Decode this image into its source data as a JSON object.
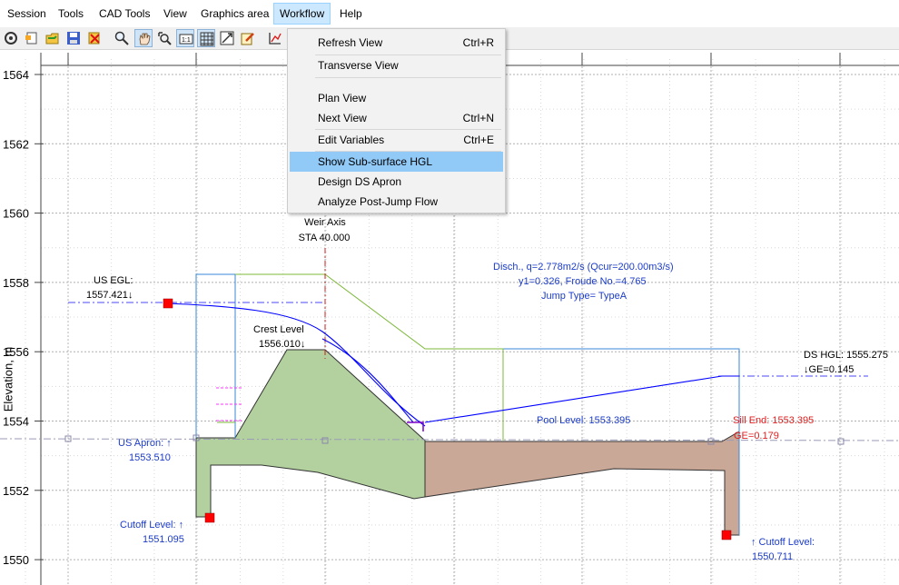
{
  "menubar": {
    "items": [
      "Session",
      "Tools",
      "CAD Tools",
      "View",
      "Graphics area",
      "Workflow",
      "Help"
    ],
    "active": "Workflow"
  },
  "toolbar": {
    "icons": [
      "settings-icon",
      "new-file-icon",
      "open-icon",
      "save-icon",
      "close-file-icon",
      "zoom-icon",
      "pan-hand-icon",
      "zoom-window-icon",
      "one-to-one-icon",
      "grid-icon",
      "fit-icon",
      "edit-icon",
      "chart-icon"
    ]
  },
  "workflow_menu": {
    "items": [
      {
        "label": "Refresh View",
        "shortcut": "Ctrl+R"
      },
      {
        "label": "Transverse View",
        "shortcut": ""
      },
      {
        "label": "Plan View",
        "shortcut": ""
      },
      {
        "label": "Next View",
        "shortcut": "Ctrl+N"
      },
      {
        "label": "Edit Variables",
        "shortcut": "Ctrl+E"
      },
      {
        "label": "Show Sub-surface HGL",
        "shortcut": "",
        "highlighted": true
      },
      {
        "label": "Design DS Apron",
        "shortcut": ""
      },
      {
        "label": "Analyze Post-Jump Flow",
        "shortcut": ""
      }
    ]
  },
  "plot": {
    "ylabel": "Elevation, m",
    "y_ticks": [
      "1564",
      "1562",
      "1560",
      "1558",
      "1556",
      "1554",
      "1552",
      "1550"
    ],
    "ylim": [
      1549.4,
      1564.4
    ],
    "annotations": {
      "weir_axis": "Weir Axis",
      "weir_sta": "STA 40.000",
      "us_egl_title": "US EGL:",
      "us_egl_value": "1557.421↓",
      "crest_title": "Crest Level",
      "crest_value": "1556.010↓",
      "disch_line1": "Disch., q=2.778m2/s (Qcur=200.00m3/s)",
      "disch_line2": "y1=0.326, Froude No.=4.765",
      "disch_line3": "Jump Type= TypeA",
      "ds_hgl_title": "DS HGL: 1555.275",
      "ds_hgl_sub": "↓GE=0.145",
      "pool_level": "Pool Level: 1553.395",
      "sill_end": "Sill End: 1553.395",
      "sill_ge": "GE=0.179",
      "us_apron_title": "US Apron: ↑",
      "us_apron_value": "1553.510",
      "cutoff_us_title": "Cutoff Level: ↑",
      "cutoff_us_value": "1551.095",
      "cutoff_ds_title": "↑ Cutoff Level:",
      "cutoff_ds_value": "1550.711"
    },
    "colors": {
      "grid": "#b0b0b0",
      "hgl": "#0000ff",
      "egl": "#4a4aff",
      "apron_fill": "#b3d19e",
      "ds_fill": "#c9a898",
      "outline_blue": "#3a87d8",
      "outline_green": "#7db83a",
      "red_marker": "#ff0000",
      "label_blue": "#1c3cc8",
      "label_red": "#e02020"
    }
  }
}
